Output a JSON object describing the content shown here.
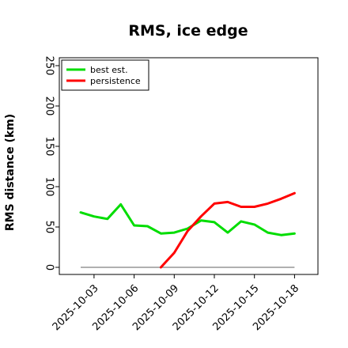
{
  "chart_data": {
    "type": "line",
    "title": "RMS, ice edge",
    "ylabel": "RMS distance (km)",
    "xlabel": "",
    "ylim": [
      0,
      250
    ],
    "yticks": [
      0,
      50,
      100,
      150,
      200,
      250
    ],
    "x": [
      "2025-10-02",
      "2025-10-03",
      "2025-10-04",
      "2025-10-05",
      "2025-10-06",
      "2025-10-07",
      "2025-10-08",
      "2025-10-09",
      "2025-10-10",
      "2025-10-11",
      "2025-10-12",
      "2025-10-13",
      "2025-10-14",
      "2025-10-15",
      "2025-10-16",
      "2025-10-17",
      "2025-10-18"
    ],
    "xticks": [
      "2025-10-03",
      "2025-10-06",
      "2025-10-09",
      "2025-10-12",
      "2025-10-15",
      "2025-10-18"
    ],
    "legend_position": "top-left",
    "series": [
      {
        "name": "best est.",
        "color": "#00dd00",
        "values": [
          68,
          63,
          60,
          78,
          52,
          51,
          42,
          43,
          48,
          58,
          56,
          43,
          57,
          53,
          43,
          40,
          42
        ]
      },
      {
        "name": "persistence",
        "color": "#ff0000",
        "values": [
          null,
          null,
          null,
          null,
          null,
          null,
          0,
          18,
          45,
          63,
          79,
          81,
          75,
          75,
          79,
          85,
          92
        ]
      }
    ],
    "baseline": {
      "value": 0,
      "from": "2025-10-02",
      "to": "2025-10-18",
      "color": "#808080"
    }
  }
}
